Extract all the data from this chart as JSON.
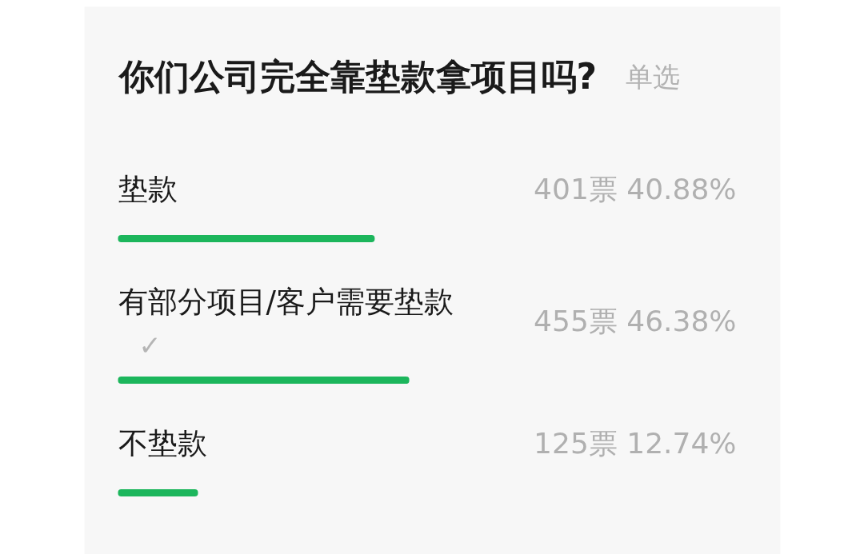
{
  "chart_data": {
    "type": "bar",
    "orientation": "horizontal",
    "title": "你们公司完全靠垫款拿项目吗?",
    "subtitle": "单选",
    "categories": [
      "垫款",
      "有部分项目/客户需要垫款",
      "不垫款"
    ],
    "values": [
      40.88,
      46.38,
      12.74
    ],
    "color": "#1cb65c",
    "value_labels": [
      "401票 40.88%",
      "455票 46.38%",
      "125票 12.74%"
    ],
    "annotations": [
      "✓"
    ],
    "tick_labels": false
  }
}
